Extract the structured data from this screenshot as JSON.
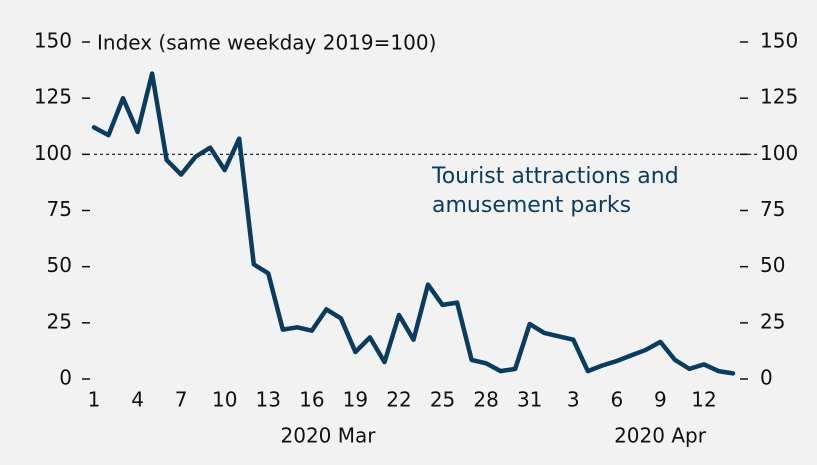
{
  "chart_data": {
    "type": "line",
    "title": "Index (same weekday 2019=100)",
    "categories": [
      "1",
      null,
      null,
      "4",
      null,
      null,
      "7",
      null,
      null,
      "10",
      null,
      null,
      "13",
      null,
      null,
      "16",
      null,
      null,
      "19",
      null,
      null,
      "22",
      null,
      null,
      "25",
      null,
      null,
      "28",
      null,
      null,
      "31",
      null,
      null,
      "3",
      null,
      null,
      "6",
      null,
      null,
      "9",
      null,
      null,
      "12",
      null,
      null
    ],
    "x_groups": [
      "2020 Mar",
      "2020 Apr"
    ],
    "series": [
      {
        "name": "Tourist attractions and amusement parks",
        "color": "#0b3c5d",
        "values": [
          112,
          108.5,
          125,
          110,
          136,
          97.5,
          91,
          99,
          103,
          93,
          107,
          51,
          47,
          22,
          23,
          21.5,
          31,
          27,
          12,
          18.5,
          7.5,
          28.5,
          17.5,
          42,
          33,
          34,
          8.5,
          7,
          3.5,
          4.5,
          24.5,
          20.5,
          19,
          17.5,
          3.5,
          6,
          8,
          10.5,
          13,
          16.5,
          8.5,
          4.5,
          6.5,
          3.5,
          2.5
        ]
      }
    ],
    "reference_line": 100,
    "ylim": [
      0,
      150
    ],
    "yticks": [
      0,
      25,
      50,
      75,
      100,
      125,
      150
    ],
    "y2lim": [
      0,
      150
    ],
    "y2ticks": [
      0,
      25,
      50,
      75,
      100,
      125,
      150
    ],
    "grid": false
  }
}
